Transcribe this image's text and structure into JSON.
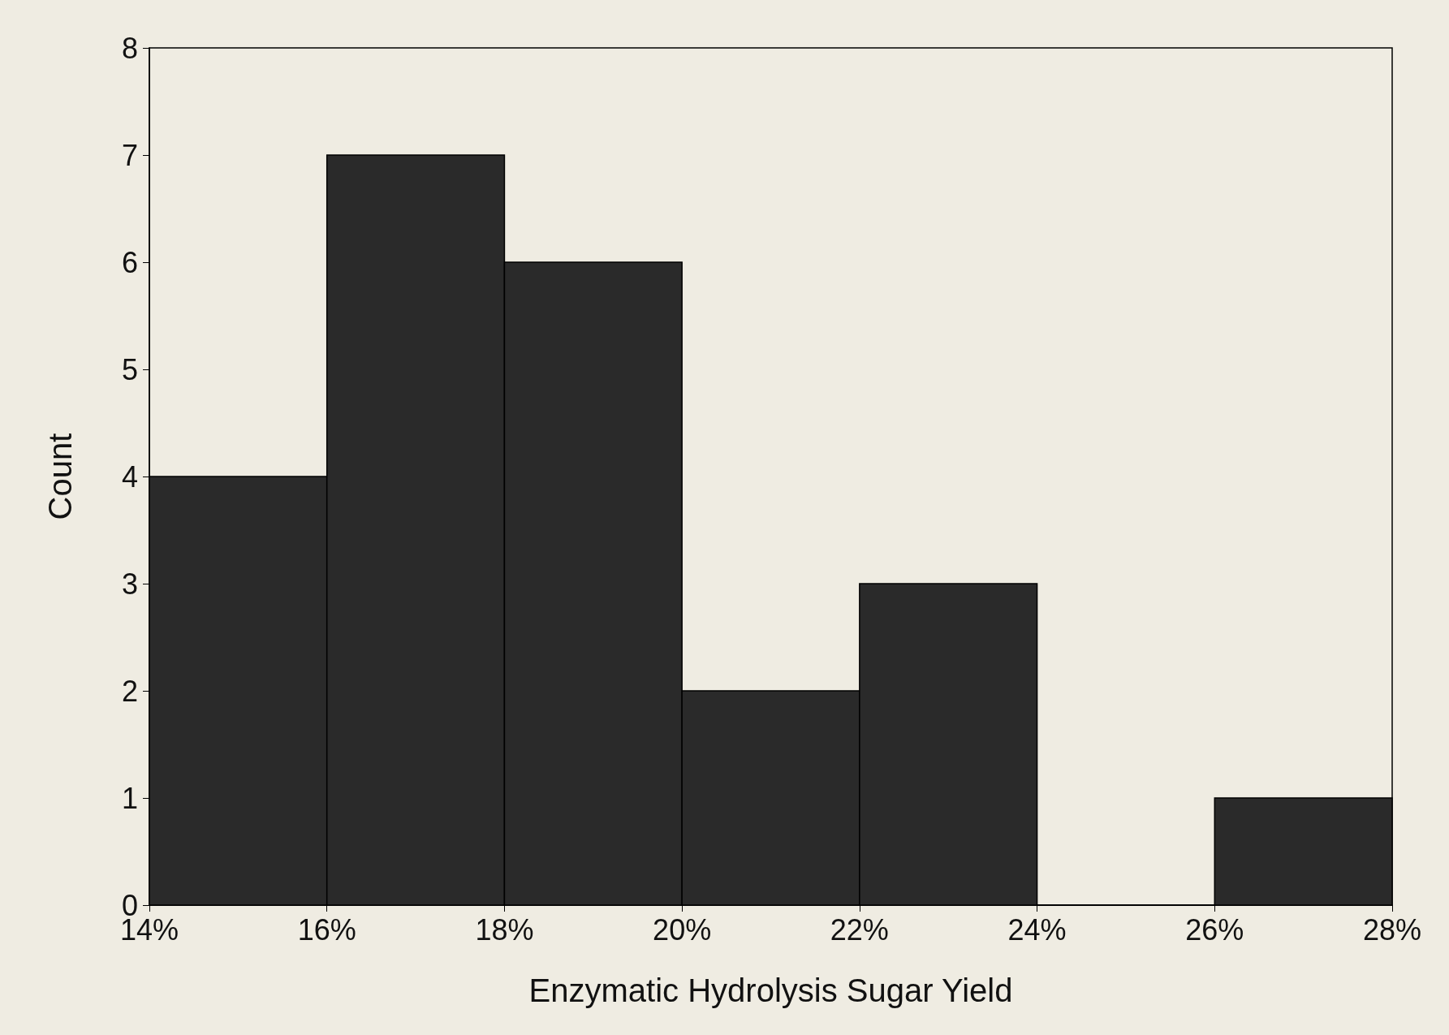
{
  "chart_data": {
    "type": "histogram",
    "xlabel": "Enzymatic Hydrolysis Sugar Yield",
    "ylabel": "Count",
    "bins": [
      14,
      16,
      18,
      20,
      22,
      24,
      26,
      28
    ],
    "values": [
      4,
      7,
      6,
      2,
      3,
      0,
      1
    ],
    "color": "#2a2a2a",
    "xlim": [
      14,
      28
    ],
    "xticks": [
      {
        "value": 14,
        "label": "14%"
      },
      {
        "value": 16,
        "label": "16%"
      },
      {
        "value": 18,
        "label": "18%"
      },
      {
        "value": 20,
        "label": "20%"
      },
      {
        "value": 22,
        "label": "22%"
      },
      {
        "value": 24,
        "label": "24%"
      },
      {
        "value": 26,
        "label": "26%"
      },
      {
        "value": 28,
        "label": "28%"
      }
    ],
    "ylim": [
      0,
      8
    ],
    "yticks": [
      0,
      1,
      2,
      3,
      4,
      5,
      6,
      7,
      8
    ],
    "grid": false
  }
}
